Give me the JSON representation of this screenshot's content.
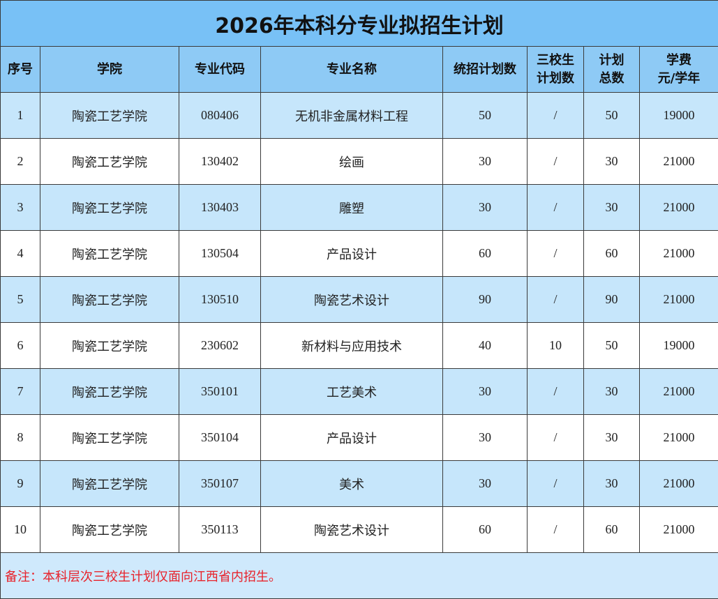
{
  "table": {
    "title": "2026年本科分专业拟招生计划",
    "header": [
      [
        "序号"
      ],
      [
        "学院"
      ],
      [
        "专业代码"
      ],
      [
        "专业名称"
      ],
      [
        "统招计划数"
      ],
      [
        "三校生",
        "计划数"
      ],
      [
        "计划",
        "总数"
      ],
      [
        "学费",
        "元/学年"
      ]
    ],
    "rows": [
      [
        1,
        "陶瓷工艺学院",
        "080406",
        "无机非金属材料工程",
        50,
        "/",
        50,
        19000
      ],
      [
        2,
        "陶瓷工艺学院",
        "130402",
        "绘画",
        30,
        "/",
        30,
        21000
      ],
      [
        3,
        "陶瓷工艺学院",
        "130403",
        "雕塑",
        30,
        "/",
        30,
        21000
      ],
      [
        4,
        "陶瓷工艺学院",
        "130504",
        "产品设计",
        60,
        "/",
        60,
        21000
      ],
      [
        5,
        "陶瓷工艺学院",
        "130510",
        "陶瓷艺术设计",
        90,
        "/",
        90,
        21000
      ],
      [
        6,
        "陶瓷工艺学院",
        "230602",
        "新材料与应用技术",
        40,
        10,
        50,
        19000
      ],
      [
        7,
        "陶瓷工艺学院",
        "350101",
        "工艺美术",
        30,
        "/",
        30,
        21000
      ],
      [
        8,
        "陶瓷工艺学院",
        "350104",
        "产品设计",
        30,
        "/",
        30,
        21000
      ],
      [
        9,
        "陶瓷工艺学院",
        "350107",
        "美术",
        30,
        "/",
        30,
        21000
      ],
      [
        10,
        "陶瓷工艺学院",
        "350113",
        "陶瓷艺术设计",
        60,
        "/",
        60,
        21000
      ]
    ],
    "note": "备注：本科层次三校生计划仅面向江西省内招生。"
  }
}
